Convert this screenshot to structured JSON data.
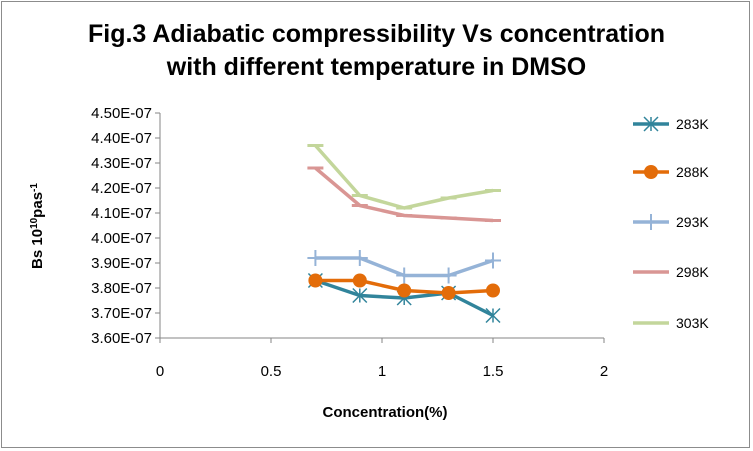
{
  "chart_data": {
    "type": "line",
    "title_line1": "Fig.3 Adiabatic compressibility Vs concentration",
    "title_line2": "with different temperature in DMSO",
    "xlabel": "Concentration(%)",
    "ylabel_main": "Bs 10",
    "ylabel_sup1": "10",
    "ylabel_mid": "pas",
    "ylabel_sup2": "-1",
    "xlim": [
      0,
      2
    ],
    "ylim": [
      3.6e-07,
      4.5e-07
    ],
    "x_ticks": [
      "0",
      "0.5",
      "1",
      "1.5",
      "2"
    ],
    "y_ticks": [
      "4.50E-07",
      "4.40E-07",
      "4.30E-07",
      "4.20E-07",
      "4.10E-07",
      "4.00E-07",
      "3.90E-07",
      "3.80E-07",
      "3.70E-07",
      "3.60E-07"
    ],
    "legend_position": "right",
    "grid": false,
    "series": [
      {
        "name": "283K",
        "color": "#31849b",
        "marker": "star",
        "x": [
          0.7,
          0.9,
          1.1,
          1.3,
          1.5
        ],
        "y": [
          3.83e-07,
          3.77e-07,
          3.76e-07,
          3.78e-07,
          3.69e-07
        ]
      },
      {
        "name": "288K",
        "color": "#e36c09",
        "marker": "circle",
        "x": [
          0.7,
          0.9,
          1.1,
          1.3,
          1.5
        ],
        "y": [
          3.83e-07,
          3.83e-07,
          3.79e-07,
          3.78e-07,
          3.79e-07
        ]
      },
      {
        "name": "293K",
        "color": "#95b3d7",
        "marker": "plus",
        "x": [
          0.7,
          0.9,
          1.1,
          1.3,
          1.5
        ],
        "y": [
          3.92e-07,
          3.92e-07,
          3.85e-07,
          3.85e-07,
          3.91e-07
        ]
      },
      {
        "name": "298K",
        "color": "#d99694",
        "marker": "dash",
        "x": [
          0.7,
          0.9,
          1.1,
          1.3,
          1.5
        ],
        "y": [
          4.28e-07,
          4.13e-07,
          4.09e-07,
          4.08e-07,
          4.07e-07
        ]
      },
      {
        "name": "303K",
        "color": "#c3d69b",
        "marker": "dash",
        "x": [
          0.7,
          0.9,
          1.1,
          1.3,
          1.5
        ],
        "y": [
          4.37e-07,
          4.17e-07,
          4.12e-07,
          4.16e-07,
          4.19e-07
        ]
      }
    ]
  }
}
